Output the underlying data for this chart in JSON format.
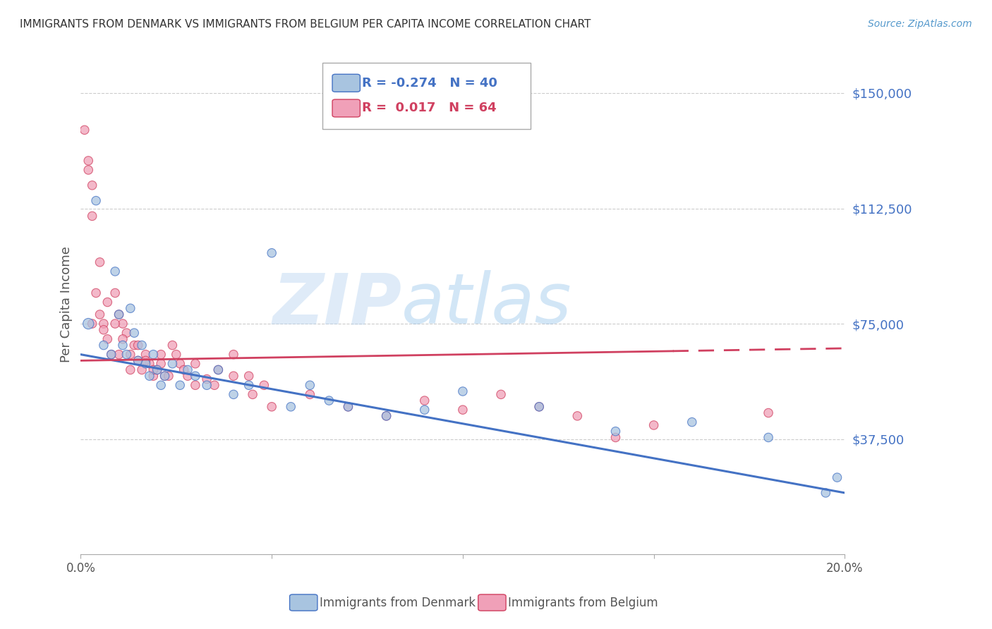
{
  "title": "IMMIGRANTS FROM DENMARK VS IMMIGRANTS FROM BELGIUM PER CAPITA INCOME CORRELATION CHART",
  "source": "Source: ZipAtlas.com",
  "ylabel": "Per Capita Income",
  "xlim": [
    0.0,
    0.2
  ],
  "ylim": [
    0,
    162500
  ],
  "yticks": [
    0,
    37500,
    75000,
    112500,
    150000
  ],
  "ytick_labels": [
    "",
    "$37,500",
    "$75,000",
    "$112,500",
    "$150,000"
  ],
  "xticks": [
    0.0,
    0.05,
    0.1,
    0.15,
    0.2
  ],
  "xtick_labels": [
    "0.0%",
    "",
    "",
    "",
    "20.0%"
  ],
  "color_denmark": "#a8c4e0",
  "color_belgium": "#f0a0b8",
  "color_denmark_line": "#4472c4",
  "color_belgium_line": "#d04060",
  "label_denmark": "Immigrants from Denmark",
  "label_belgium": "Immigrants from Belgium",
  "watermark_zip": "ZIP",
  "watermark_atlas": "atlas",
  "background_color": "#ffffff",
  "grid_color": "#cccccc",
  "title_color": "#333333",
  "ytick_color": "#4472c4",
  "source_color": "#5599cc",
  "denmark_x": [
    0.002,
    0.004,
    0.006,
    0.008,
    0.009,
    0.01,
    0.011,
    0.012,
    0.013,
    0.014,
    0.015,
    0.016,
    0.017,
    0.018,
    0.019,
    0.02,
    0.021,
    0.022,
    0.024,
    0.026,
    0.028,
    0.03,
    0.033,
    0.036,
    0.04,
    0.044,
    0.05,
    0.055,
    0.06,
    0.065,
    0.07,
    0.08,
    0.09,
    0.1,
    0.12,
    0.14,
    0.16,
    0.18,
    0.195,
    0.198
  ],
  "denmark_y": [
    75000,
    115000,
    68000,
    65000,
    92000,
    78000,
    68000,
    65000,
    80000,
    72000,
    63000,
    68000,
    62000,
    58000,
    65000,
    60000,
    55000,
    58000,
    62000,
    55000,
    60000,
    58000,
    55000,
    60000,
    52000,
    55000,
    98000,
    48000,
    55000,
    50000,
    48000,
    45000,
    47000,
    53000,
    48000,
    40000,
    43000,
    38000,
    20000,
    25000
  ],
  "denmark_size": [
    120,
    80,
    80,
    80,
    80,
    80,
    80,
    80,
    80,
    80,
    80,
    80,
    80,
    80,
    80,
    80,
    80,
    80,
    80,
    80,
    80,
    80,
    80,
    80,
    80,
    80,
    80,
    80,
    80,
    80,
    80,
    80,
    80,
    80,
    80,
    80,
    80,
    80,
    80,
    80
  ],
  "belgium_x": [
    0.001,
    0.002,
    0.003,
    0.004,
    0.005,
    0.006,
    0.007,
    0.008,
    0.009,
    0.01,
    0.011,
    0.012,
    0.013,
    0.014,
    0.015,
    0.016,
    0.017,
    0.018,
    0.019,
    0.02,
    0.021,
    0.022,
    0.024,
    0.026,
    0.028,
    0.03,
    0.033,
    0.036,
    0.04,
    0.044,
    0.048,
    0.002,
    0.003,
    0.005,
    0.007,
    0.009,
    0.011,
    0.013,
    0.015,
    0.017,
    0.019,
    0.021,
    0.023,
    0.025,
    0.027,
    0.03,
    0.035,
    0.04,
    0.045,
    0.05,
    0.06,
    0.07,
    0.08,
    0.09,
    0.1,
    0.11,
    0.12,
    0.13,
    0.14,
    0.15,
    0.003,
    0.006,
    0.01,
    0.18
  ],
  "belgium_y": [
    138000,
    125000,
    110000,
    85000,
    95000,
    75000,
    70000,
    65000,
    85000,
    65000,
    75000,
    72000,
    60000,
    68000,
    63000,
    60000,
    65000,
    62000,
    58000,
    60000,
    65000,
    58000,
    68000,
    62000,
    58000,
    62000,
    57000,
    60000,
    65000,
    58000,
    55000,
    128000,
    120000,
    78000,
    82000,
    75000,
    70000,
    65000,
    68000,
    63000,
    60000,
    62000,
    58000,
    65000,
    60000,
    55000,
    55000,
    58000,
    52000,
    48000,
    52000,
    48000,
    45000,
    50000,
    47000,
    52000,
    48000,
    45000,
    38000,
    42000,
    75000,
    73000,
    78000,
    46000
  ],
  "belgium_size": [
    80,
    80,
    80,
    80,
    80,
    80,
    80,
    80,
    80,
    80,
    80,
    80,
    80,
    80,
    80,
    80,
    80,
    80,
    80,
    80,
    80,
    80,
    80,
    80,
    80,
    80,
    80,
    80,
    80,
    80,
    80,
    80,
    80,
    80,
    80,
    80,
    80,
    80,
    80,
    80,
    80,
    80,
    80,
    80,
    80,
    80,
    80,
    80,
    80,
    80,
    80,
    80,
    80,
    80,
    80,
    80,
    80,
    80,
    80,
    80,
    80,
    80,
    80,
    80
  ],
  "trend_dk_x0": 0.0,
  "trend_dk_y0": 65000,
  "trend_dk_x1": 0.2,
  "trend_dk_y1": 20000,
  "trend_bk_x0": 0.0,
  "trend_bk_y0": 63000,
  "trend_bk_x1": 0.2,
  "trend_bk_y1": 67000,
  "trend_bk_solid_end": 0.155
}
